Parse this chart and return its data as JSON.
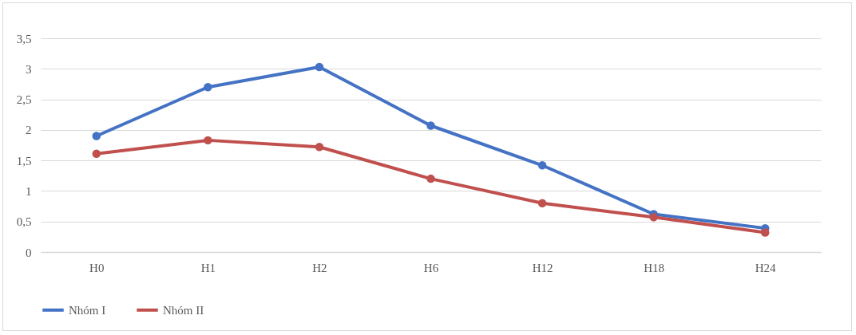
{
  "chart_data": {
    "type": "line",
    "categories": [
      "H0",
      "H1",
      "H2",
      "H6",
      "H12",
      "H18",
      "H24"
    ],
    "series": [
      {
        "name": "Nhóm I",
        "color": "#4472c4",
        "values": [
          1.9,
          2.7,
          3.03,
          2.07,
          1.42,
          0.62,
          0.39
        ]
      },
      {
        "name": "Nhóm II",
        "color": "#c0504d",
        "values": [
          1.61,
          1.83,
          1.72,
          1.2,
          0.8,
          0.57,
          0.32
        ]
      }
    ],
    "ylim": [
      0,
      3.5
    ],
    "yticks": [
      0,
      {
        "value": 0.5,
        "label": "0,5"
      },
      1,
      {
        "value": 1.5,
        "label": "1,5"
      },
      2,
      {
        "value": 2.5,
        "label": "2,5"
      },
      3,
      {
        "value": 3.5,
        "label": "3,5"
      }
    ],
    "grid": "y",
    "legend": "bottom",
    "marker": "circle",
    "line_style": "solid"
  }
}
